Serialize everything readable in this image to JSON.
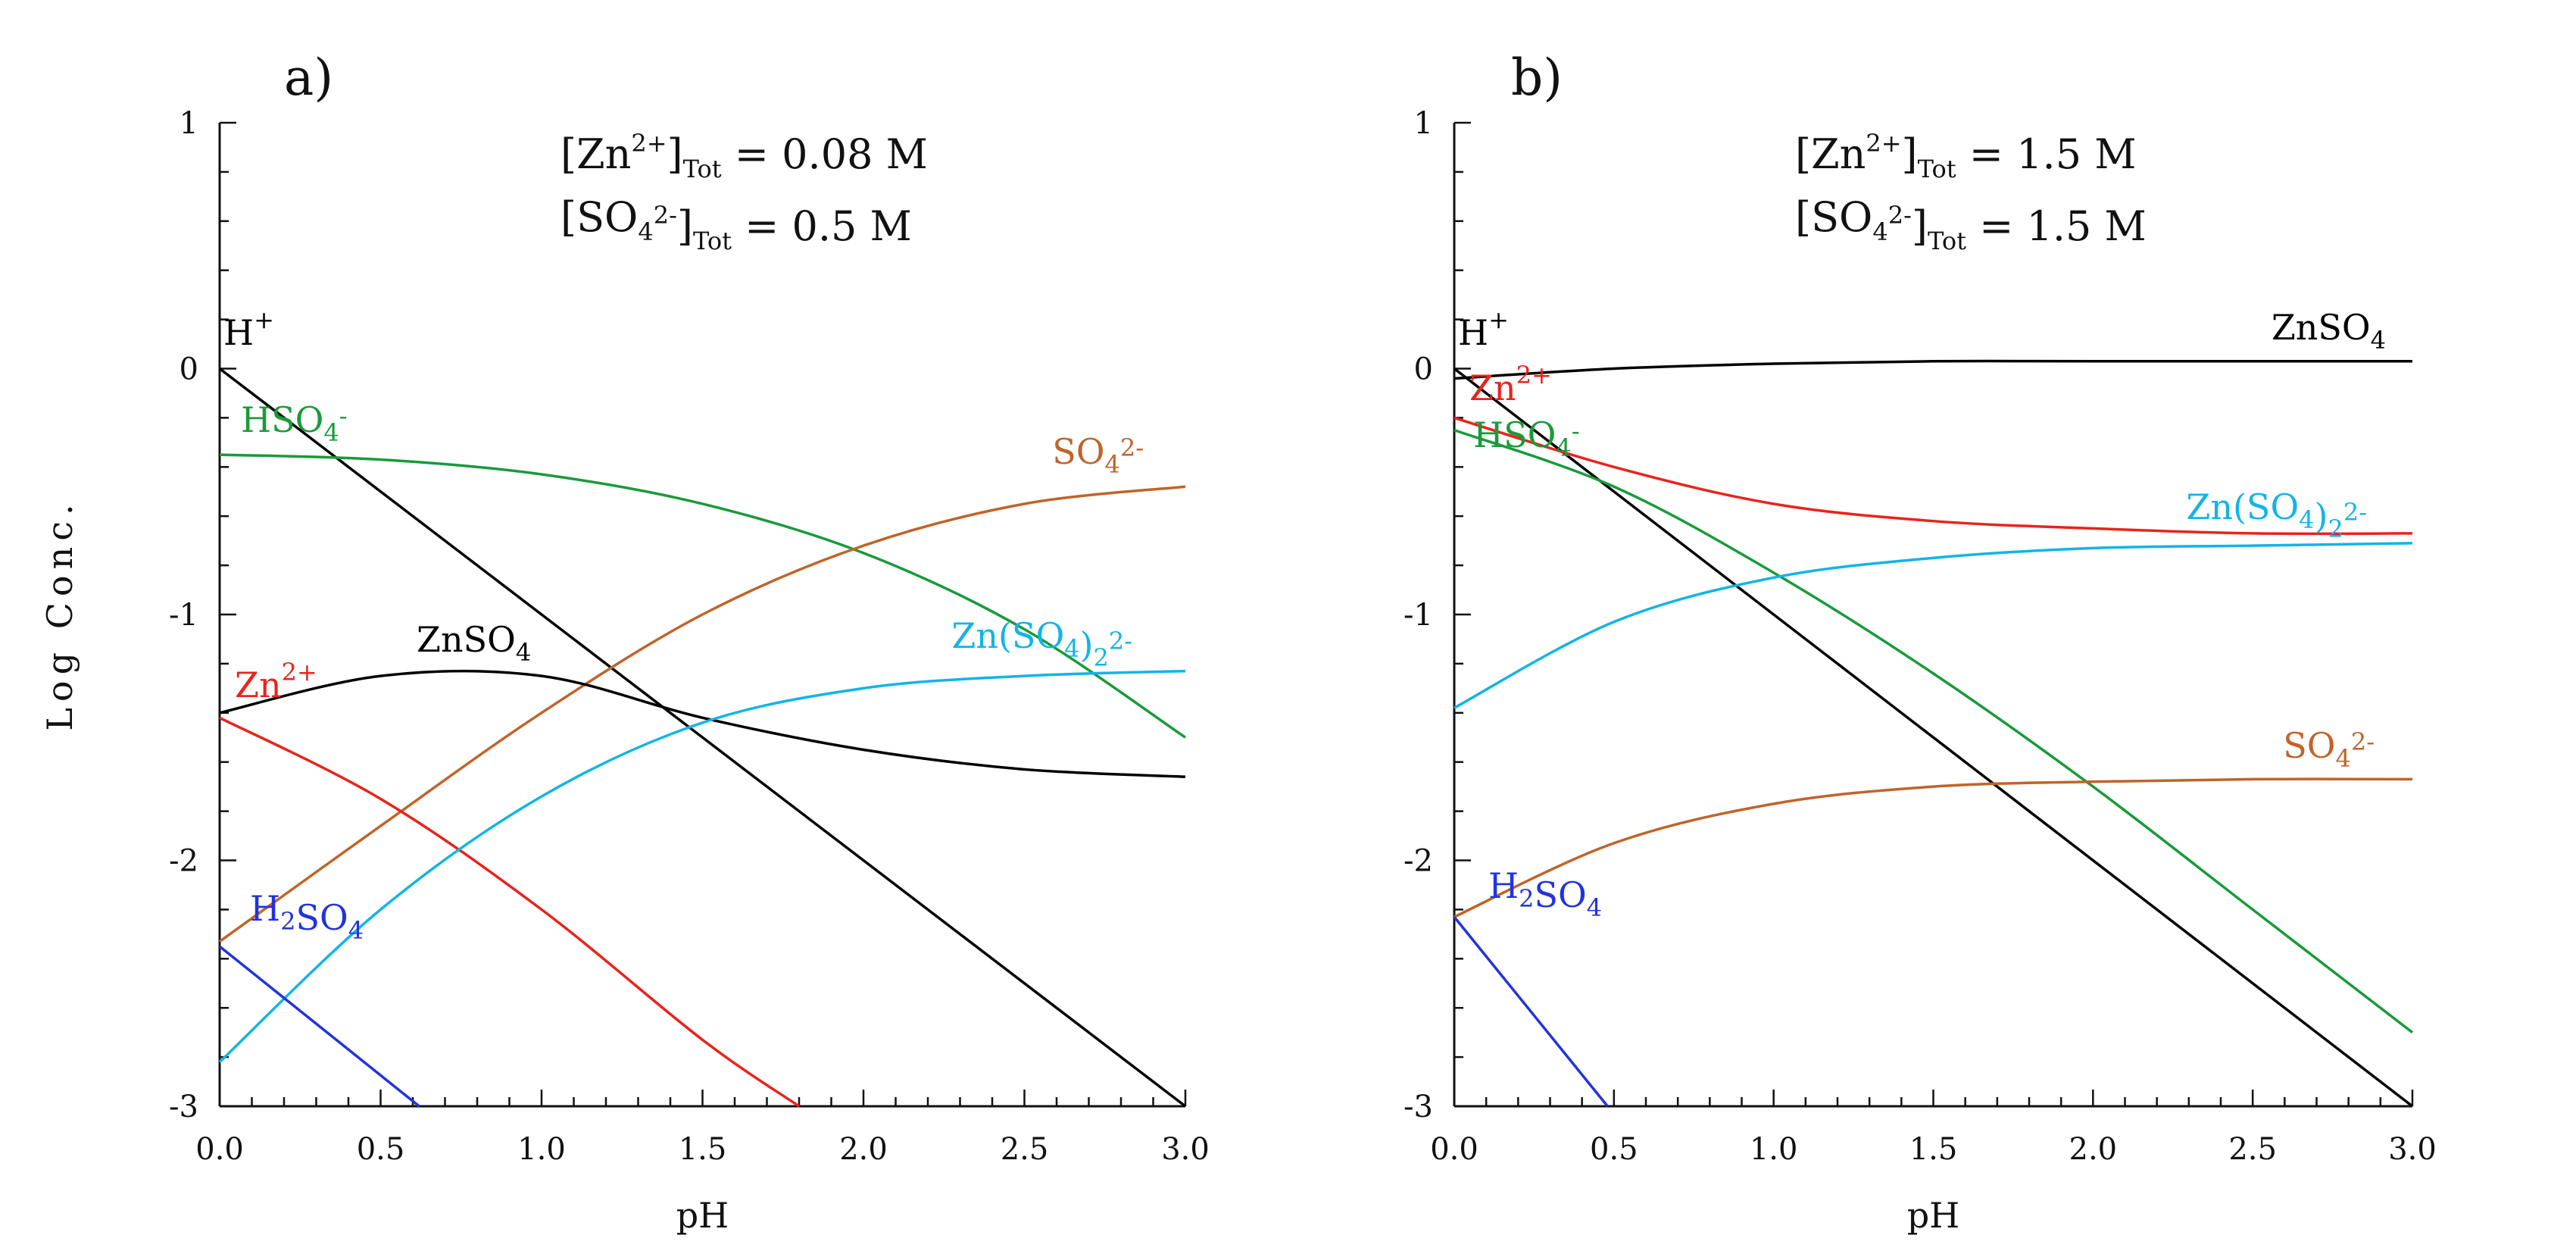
{
  "chart_data": [
    {
      "panel_label": "a)",
      "type": "line",
      "xlabel": "pH",
      "ylabel": "Log Conc.",
      "xlim": [
        0,
        3
      ],
      "ylim": [
        -3,
        1
      ],
      "x_ticks": [
        "0.0",
        "0.5",
        "1.0",
        "1.5",
        "2.0",
        "2.5",
        "3.0"
      ],
      "y_ticks": [
        "1",
        "0",
        "-1",
        "-2",
        "-3"
      ],
      "conditions": [
        {
          "before": "[Zn",
          "sup": "2+",
          "mid": "]",
          "sub": "Tot",
          "after": " = 0.08 M"
        },
        {
          "before": "[SO",
          "sub1": "4",
          "sup": "2-",
          "mid": "]",
          "sub": "Tot",
          "after": " = 0.5 M"
        }
      ],
      "series": [
        {
          "name": "H+",
          "color": "#000000",
          "label": {
            "main": "H",
            "sup": "+",
            "sub": ""
          },
          "x": [
            0,
            3
          ],
          "y": [
            0,
            -3
          ]
        },
        {
          "name": "HSO4-",
          "color": "#1a9a3a",
          "label": {
            "main": "HSO",
            "sub": "4",
            "sup": "-"
          },
          "x": [
            0,
            0.5,
            1.0,
            1.5,
            2.0,
            2.5,
            3.0
          ],
          "y": [
            -0.35,
            -0.37,
            -0.43,
            -0.55,
            -0.75,
            -1.06,
            -1.5
          ]
        },
        {
          "name": "SO4 2-",
          "color": "#c0642a",
          "label": {
            "main": "SO",
            "sub": "4",
            "sup": "2-"
          },
          "x": [
            0,
            0.5,
            1.0,
            1.5,
            2.0,
            2.5,
            3.0
          ],
          "y": [
            -2.33,
            -1.86,
            -1.4,
            -1.0,
            -0.72,
            -0.55,
            -0.48
          ]
        },
        {
          "name": "ZnSO4",
          "color": "#000000",
          "label": {
            "main": "ZnSO",
            "sub": "4",
            "sup": ""
          },
          "x": [
            0,
            0.5,
            1.0,
            1.5,
            2.0,
            2.5,
            3.0
          ],
          "y": [
            -1.4,
            -1.25,
            -1.25,
            -1.42,
            -1.55,
            -1.63,
            -1.66
          ]
        },
        {
          "name": "Zn2+",
          "color": "#e8241c",
          "label": {
            "main": "Zn",
            "sub": "",
            "sup": "2+"
          },
          "x": [
            0,
            0.5,
            1.0,
            1.5,
            1.8
          ],
          "y": [
            -1.42,
            -1.75,
            -2.2,
            -2.73,
            -3.0
          ]
        },
        {
          "name": "Zn(SO4)2 2-",
          "color": "#12b4e8",
          "label": {
            "main": "Zn(SO",
            "sub": "4",
            "mid": ")",
            "sub2": "2",
            "sup": "2-"
          },
          "x": [
            0,
            0.5,
            1.0,
            1.5,
            2.0,
            2.5,
            3.0
          ],
          "y": [
            -2.82,
            -2.2,
            -1.74,
            -1.44,
            -1.3,
            -1.25,
            -1.23
          ]
        },
        {
          "name": "H2SO4",
          "color": "#2233dd",
          "label": {
            "main": "H",
            "sub": "2",
            "rest": "SO",
            "sub2": "4",
            "sup": ""
          },
          "x": [
            0,
            0.62
          ],
          "y": [
            -2.35,
            -3.0
          ]
        }
      ]
    },
    {
      "panel_label": "b)",
      "type": "line",
      "xlabel": "pH",
      "ylabel": "",
      "xlim": [
        0,
        3
      ],
      "ylim": [
        -3,
        1
      ],
      "x_ticks": [
        "0.0",
        "0.5",
        "1.0",
        "1.5",
        "2.0",
        "2.5",
        "3.0"
      ],
      "y_ticks": [
        "1",
        "0",
        "-1",
        "-2",
        "-3"
      ],
      "conditions": [
        {
          "before": "[Zn",
          "sup": "2+",
          "mid": "]",
          "sub": "Tot",
          "after": " = 1.5 M"
        },
        {
          "before": "[SO",
          "sub1": "4",
          "sup": "2-",
          "mid": "]",
          "sub": "Tot",
          "after": " = 1.5 M"
        }
      ],
      "series": [
        {
          "name": "ZnSO4",
          "color": "#000000",
          "label": {
            "main": "ZnSO",
            "sub": "4",
            "sup": ""
          },
          "x": [
            0,
            0.5,
            1.0,
            1.5,
            2.0,
            2.5,
            3.0
          ],
          "y": [
            -0.04,
            0.0,
            0.02,
            0.03,
            0.03,
            0.03,
            0.03
          ]
        },
        {
          "name": "H+",
          "color": "#000000",
          "label": {
            "main": "H",
            "sup": "+",
            "sub": ""
          },
          "x": [
            0,
            3
          ],
          "y": [
            0,
            -3
          ]
        },
        {
          "name": "Zn2+",
          "color": "#e8241c",
          "label": {
            "main": "Zn",
            "sub": "",
            "sup": "2+"
          },
          "x": [
            0,
            0.5,
            1.0,
            1.5,
            2.0,
            2.5,
            3.0
          ],
          "y": [
            -0.2,
            -0.4,
            -0.55,
            -0.62,
            -0.65,
            -0.67,
            -0.67
          ]
        },
        {
          "name": "HSO4-",
          "color": "#1a9a3a",
          "label": {
            "main": "HSO",
            "sub": "4",
            "sup": "-"
          },
          "x": [
            0,
            0.5,
            1.0,
            1.5,
            2.0,
            2.5,
            3.0
          ],
          "y": [
            -0.25,
            -0.48,
            -0.83,
            -1.24,
            -1.7,
            -2.2,
            -2.7
          ]
        },
        {
          "name": "Zn(SO4)2 2-",
          "color": "#12b4e8",
          "label": {
            "main": "Zn(SO",
            "sub": "4",
            "mid": ")",
            "sub2": "2",
            "sup": "2-"
          },
          "x": [
            0,
            0.5,
            1.0,
            1.5,
            2.0,
            2.5,
            3.0
          ],
          "y": [
            -1.38,
            -1.03,
            -0.85,
            -0.77,
            -0.73,
            -0.72,
            -0.71
          ]
        },
        {
          "name": "SO4 2-",
          "color": "#c0642a",
          "label": {
            "main": "SO",
            "sub": "4",
            "sup": "2-"
          },
          "x": [
            0,
            0.5,
            1.0,
            1.5,
            2.0,
            2.5,
            3.0
          ],
          "y": [
            -2.23,
            -1.93,
            -1.77,
            -1.7,
            -1.68,
            -1.67,
            -1.67
          ]
        },
        {
          "name": "H2SO4",
          "color": "#2233dd",
          "label": {
            "main": "H",
            "sub": "2",
            "rest": "SO",
            "sub2": "4",
            "sup": ""
          },
          "x": [
            0,
            0.48
          ],
          "y": [
            -2.23,
            -3.0
          ]
        }
      ]
    }
  ]
}
